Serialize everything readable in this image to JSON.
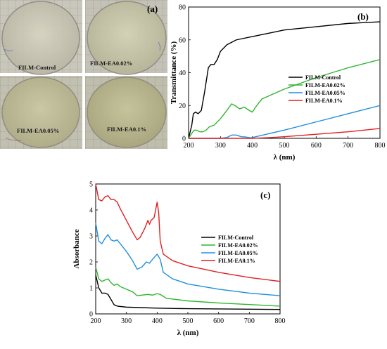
{
  "photo_panel": {
    "label": "(a)",
    "samples": [
      "FILM-Control",
      "FILM-EA0.02%",
      "FILM-EA0.05%",
      "FILM-EA0.1%"
    ]
  },
  "chart_data": [
    {
      "panel_label": "(b)",
      "type": "line",
      "title": "",
      "xlabel": "λ (nm)",
      "ylabel": "Transmittance (%)",
      "xlim": [
        200,
        800
      ],
      "ylim": [
        0,
        80
      ],
      "xticks": [
        200,
        300,
        400,
        500,
        600,
        700,
        800
      ],
      "yticks": [
        0,
        20,
        40,
        60,
        80
      ],
      "grid": false,
      "legend_position": "center-right",
      "series": [
        {
          "name": "FILM-Control",
          "color": "#000000",
          "x": [
            200,
            210,
            215,
            222,
            230,
            240,
            250,
            262,
            270,
            280,
            290,
            300,
            320,
            350,
            400,
            450,
            500,
            600,
            700,
            800
          ],
          "y": [
            0,
            8,
            15,
            16,
            15,
            17,
            28,
            43,
            45,
            45,
            48,
            53,
            57,
            60,
            62,
            64,
            66,
            68,
            70,
            71
          ]
        },
        {
          "name": "FILM-EA0.02%",
          "color": "#2db52d",
          "x": [
            200,
            210,
            218,
            225,
            235,
            245,
            255,
            265,
            280,
            300,
            320,
            335,
            345,
            360,
            375,
            390,
            400,
            410,
            430,
            500,
            600,
            700,
            800
          ],
          "y": [
            0,
            3,
            5,
            5,
            4,
            4,
            5,
            7,
            8,
            12,
            17,
            21,
            20,
            18,
            19,
            17,
            16,
            19,
            24,
            30,
            37,
            43,
            48
          ]
        },
        {
          "name": "FILM-EA0.05%",
          "color": "#1f8fe0",
          "x": [
            200,
            300,
            320,
            335,
            350,
            365,
            380,
            395,
            400,
            500,
            600,
            700,
            800
          ],
          "y": [
            0,
            0,
            0.5,
            2,
            2,
            1,
            0.8,
            0.3,
            0.5,
            5,
            10,
            15,
            20
          ]
        },
        {
          "name": "FILM-EA0.1%",
          "color": "#e02020",
          "x": [
            200,
            400,
            450,
            500,
            600,
            700,
            800
          ],
          "y": [
            0,
            0,
            0.4,
            1,
            2.5,
            4,
            6
          ]
        }
      ]
    },
    {
      "panel_label": "(c)",
      "type": "line",
      "title": "",
      "xlabel": "λ (nm)",
      "ylabel": "Absorbance",
      "xlim": [
        200,
        800
      ],
      "ylim": [
        0,
        5
      ],
      "xticks": [
        200,
        300,
        400,
        500,
        600,
        700,
        800
      ],
      "yticks": [
        0,
        1,
        2,
        3,
        4,
        5
      ],
      "grid": false,
      "legend_position": "center-right",
      "series": [
        {
          "name": "FILM-Control",
          "color": "#000000",
          "x": [
            200,
            210,
            220,
            230,
            240,
            250,
            260,
            270,
            300,
            350,
            400,
            500,
            600,
            700,
            800
          ],
          "y": [
            1.5,
            1.0,
            0.8,
            0.8,
            0.75,
            0.55,
            0.35,
            0.3,
            0.26,
            0.24,
            0.22,
            0.2,
            0.19,
            0.18,
            0.17
          ]
        },
        {
          "name": "FILM-EA0.02%",
          "color": "#2db52d",
          "x": [
            200,
            210,
            220,
            230,
            240,
            250,
            260,
            270,
            280,
            300,
            320,
            335,
            350,
            370,
            385,
            400,
            410,
            430,
            500,
            600,
            700,
            800
          ],
          "y": [
            1.8,
            1.35,
            1.25,
            1.3,
            1.35,
            1.2,
            1.1,
            1.15,
            1.05,
            0.95,
            0.85,
            0.7,
            0.72,
            0.75,
            0.72,
            0.78,
            0.75,
            0.6,
            0.5,
            0.42,
            0.36,
            0.3
          ]
        },
        {
          "name": "FILM-EA0.05%",
          "color": "#1f8fe0",
          "x": [
            200,
            210,
            220,
            230,
            240,
            250,
            260,
            270,
            280,
            300,
            320,
            335,
            350,
            365,
            375,
            385,
            400,
            410,
            420,
            450,
            500,
            600,
            700,
            800
          ],
          "y": [
            3.5,
            2.8,
            2.7,
            2.9,
            3.05,
            2.85,
            2.8,
            2.85,
            2.7,
            2.4,
            2.05,
            1.72,
            1.8,
            2.0,
            1.95,
            2.1,
            2.3,
            2.1,
            1.6,
            1.35,
            1.15,
            0.95,
            0.8,
            0.7
          ]
        },
        {
          "name": "FILM-EA0.1%",
          "color": "#e02020",
          "x": [
            200,
            210,
            220,
            230,
            240,
            250,
            260,
            270,
            280,
            300,
            320,
            335,
            345,
            360,
            370,
            375,
            380,
            390,
            400,
            405,
            410,
            420,
            450,
            500,
            600,
            700,
            800
          ],
          "y": [
            5.0,
            4.4,
            4.35,
            4.5,
            4.55,
            4.4,
            4.4,
            4.3,
            4.05,
            3.6,
            3.15,
            2.85,
            2.95,
            3.3,
            3.6,
            3.45,
            3.6,
            3.7,
            4.3,
            3.9,
            2.8,
            2.3,
            2.05,
            1.85,
            1.6,
            1.4,
            1.25
          ]
        }
      ]
    }
  ]
}
